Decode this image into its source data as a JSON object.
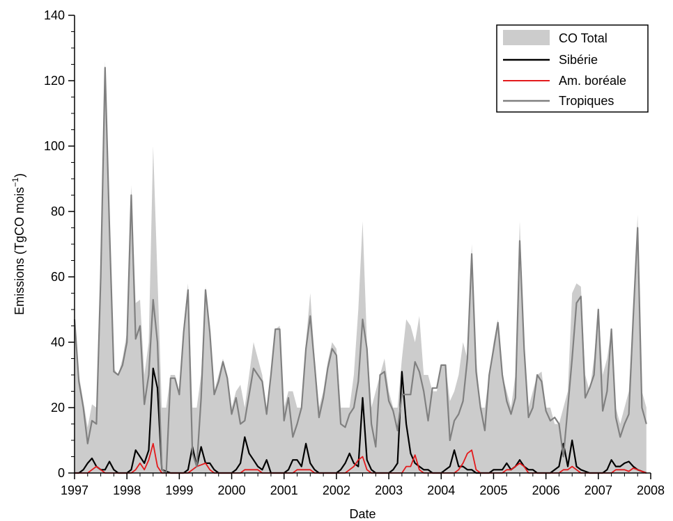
{
  "chart_data": {
    "type": "area",
    "xlabel": "Date",
    "ylabel_main": "Emissions (TgCO mois",
    "ylabel_sup": "−1",
    "ylabel_close": ")",
    "xlim": [
      1997,
      2008
    ],
    "ylim": [
      0,
      140
    ],
    "x_ticks": [
      1997,
      1998,
      1999,
      2000,
      2001,
      2002,
      2003,
      2004,
      2005,
      2006,
      2007,
      2008
    ],
    "y_ticks": [
      0,
      20,
      40,
      60,
      80,
      100,
      120,
      140
    ],
    "legend_position": "top-right",
    "grid": false,
    "x": [
      1997.0,
      1997.083,
      1997.167,
      1997.25,
      1997.333,
      1997.417,
      1997.5,
      1997.583,
      1997.667,
      1997.75,
      1997.833,
      1997.917,
      1998.0,
      1998.083,
      1998.167,
      1998.25,
      1998.333,
      1998.417,
      1998.5,
      1998.583,
      1998.667,
      1998.75,
      1998.833,
      1998.917,
      1999.0,
      1999.083,
      1999.167,
      1999.25,
      1999.333,
      1999.417,
      1999.5,
      1999.583,
      1999.667,
      1999.75,
      1999.833,
      1999.917,
      2000.0,
      2000.083,
      2000.167,
      2000.25,
      2000.333,
      2000.417,
      2000.5,
      2000.583,
      2000.667,
      2000.75,
      2000.833,
      2000.917,
      2001.0,
      2001.083,
      2001.167,
      2001.25,
      2001.333,
      2001.417,
      2001.5,
      2001.583,
      2001.667,
      2001.75,
      2001.833,
      2001.917,
      2002.0,
      2002.083,
      2002.167,
      2002.25,
      2002.333,
      2002.417,
      2002.5,
      2002.583,
      2002.667,
      2002.75,
      2002.833,
      2002.917,
      2003.0,
      2003.083,
      2003.167,
      2003.25,
      2003.333,
      2003.417,
      2003.5,
      2003.583,
      2003.667,
      2003.75,
      2003.833,
      2003.917,
      2004.0,
      2004.083,
      2004.167,
      2004.25,
      2004.333,
      2004.417,
      2004.5,
      2004.583,
      2004.667,
      2004.75,
      2004.833,
      2004.917,
      2005.0,
      2005.083,
      2005.167,
      2005.25,
      2005.333,
      2005.417,
      2005.5,
      2005.583,
      2005.667,
      2005.75,
      2005.833,
      2005.917,
      2006.0,
      2006.083,
      2006.167,
      2006.25,
      2006.333,
      2006.417,
      2006.5,
      2006.583,
      2006.667,
      2006.75,
      2006.833,
      2006.917,
      2007.0,
      2007.083,
      2007.167,
      2007.25,
      2007.333,
      2007.417,
      2007.5,
      2007.583,
      2007.667,
      2007.75,
      2007.833,
      2007.917
    ],
    "series": [
      {
        "name": "CO Total",
        "style": "area",
        "color": "#cccccc",
        "values": [
          47,
          30,
          22,
          14,
          21,
          20,
          60,
          126,
          75,
          32,
          30,
          35,
          43,
          88,
          52,
          53,
          30,
          40,
          100,
          60,
          20,
          20,
          30,
          30,
          25,
          45,
          58,
          20,
          20,
          30,
          57,
          45,
          25,
          30,
          35,
          30,
          20,
          25,
          27,
          20,
          30,
          40,
          35,
          30,
          20,
          30,
          44,
          45,
          20,
          25,
          25,
          20,
          20,
          40,
          55,
          35,
          20,
          25,
          34,
          40,
          38,
          20,
          20,
          20,
          30,
          50,
          77,
          40,
          20,
          25,
          30,
          35,
          25,
          20,
          20,
          35,
          47,
          45,
          40,
          48,
          30,
          30,
          25,
          25,
          33,
          33,
          22,
          25,
          30,
          40,
          35,
          70,
          35,
          20,
          20,
          30,
          40,
          47,
          30,
          25,
          20,
          30,
          77,
          40,
          20,
          25,
          30,
          31,
          20,
          20,
          15,
          15,
          20,
          25,
          55,
          58,
          57,
          30,
          25,
          35,
          51,
          30,
          35,
          44,
          20,
          15,
          20,
          25,
          50,
          79,
          25,
          20
        ]
      },
      {
        "name": "Sibérie",
        "style": "line",
        "color": "#000000",
        "values": [
          0,
          0,
          1,
          3,
          4.5,
          2,
          1,
          1,
          3.5,
          1,
          0,
          0,
          0,
          1,
          7,
          5,
          3,
          7,
          32,
          26,
          1,
          0.5,
          0,
          0,
          0,
          0,
          1,
          8,
          2,
          8,
          3,
          3,
          1,
          0,
          0,
          0,
          0,
          1,
          3,
          11,
          6,
          4,
          2,
          1,
          4,
          0,
          0,
          0,
          0,
          1,
          4,
          4,
          2,
          9,
          3,
          1,
          0,
          0,
          0,
          0,
          0,
          1,
          3,
          6,
          3,
          2,
          23,
          4,
          1,
          0,
          0,
          0,
          0,
          1,
          3,
          31,
          15,
          6,
          3,
          2,
          1,
          1,
          0,
          0,
          0,
          1,
          2,
          7,
          2,
          2,
          1,
          1,
          0,
          0,
          0,
          0,
          1,
          1,
          1,
          3,
          1,
          2,
          4,
          2,
          1,
          1,
          0,
          0,
          0,
          0,
          1,
          2,
          9,
          2,
          10,
          2,
          1,
          0.5,
          0,
          0,
          0,
          0,
          1,
          4,
          2,
          2,
          3,
          3.5,
          2,
          1,
          0.5,
          0
        ]
      },
      {
        "name": "Am. boréale",
        "style": "line",
        "color": "#e31a1c",
        "values": [
          0,
          0,
          0,
          0,
          1,
          2,
          1,
          0,
          0,
          0,
          0,
          0,
          0,
          0,
          1,
          3,
          1,
          4,
          9,
          2,
          0,
          0,
          0,
          0,
          0,
          0,
          0,
          1,
          2,
          2.5,
          3,
          1,
          0,
          0,
          0,
          0,
          0,
          0,
          0,
          1,
          1,
          1,
          1,
          0,
          0,
          0,
          0,
          0,
          0,
          0,
          0,
          1,
          1,
          1,
          1,
          0,
          0,
          0,
          0,
          0,
          0,
          0,
          0,
          1,
          2,
          4,
          5,
          1,
          0,
          0,
          0,
          0,
          0,
          0,
          0,
          0,
          2,
          2,
          5.5,
          1,
          0,
          0,
          0,
          0,
          0,
          0,
          0,
          0,
          1,
          3,
          6,
          7,
          1,
          0,
          0,
          0,
          0,
          0,
          0,
          1,
          1,
          2,
          3,
          2,
          0,
          0,
          0,
          0,
          0,
          0,
          0,
          0,
          1,
          1,
          2,
          1,
          0,
          0,
          0,
          0,
          0,
          0,
          0,
          0,
          1,
          1,
          1,
          0.5,
          1.5,
          1,
          0.5,
          0
        ]
      },
      {
        "name": "Tropiques",
        "style": "line",
        "color": "#808080",
        "values": [
          47,
          28,
          20,
          9,
          16,
          15,
          60,
          124,
          75,
          31,
          30,
          33,
          40,
          85,
          41,
          45,
          21,
          30,
          53,
          40,
          1,
          0,
          29,
          29,
          24,
          43,
          56,
          6,
          2,
          23,
          56,
          43,
          24,
          28,
          34,
          29,
          18,
          23,
          15,
          16,
          24,
          32,
          30,
          28,
          18,
          30,
          44,
          44,
          16,
          23,
          11,
          15,
          20,
          38,
          48,
          33,
          17,
          23,
          32,
          38,
          36,
          15,
          14,
          18,
          20,
          28,
          47,
          38,
          15,
          8,
          30,
          31,
          22,
          19,
          13,
          24,
          24,
          24,
          34,
          31,
          25,
          16,
          26,
          26,
          33,
          33,
          10,
          16,
          18,
          22,
          35,
          67,
          31,
          20,
          13,
          30,
          38,
          46,
          30,
          22,
          18,
          23,
          71,
          38,
          17,
          20,
          30,
          28,
          19,
          16,
          17,
          15,
          5,
          20,
          35,
          52,
          54,
          23,
          26,
          30,
          50,
          19,
          25,
          44,
          17,
          11,
          15,
          18,
          48,
          75,
          20,
          15
        ]
      }
    ]
  }
}
